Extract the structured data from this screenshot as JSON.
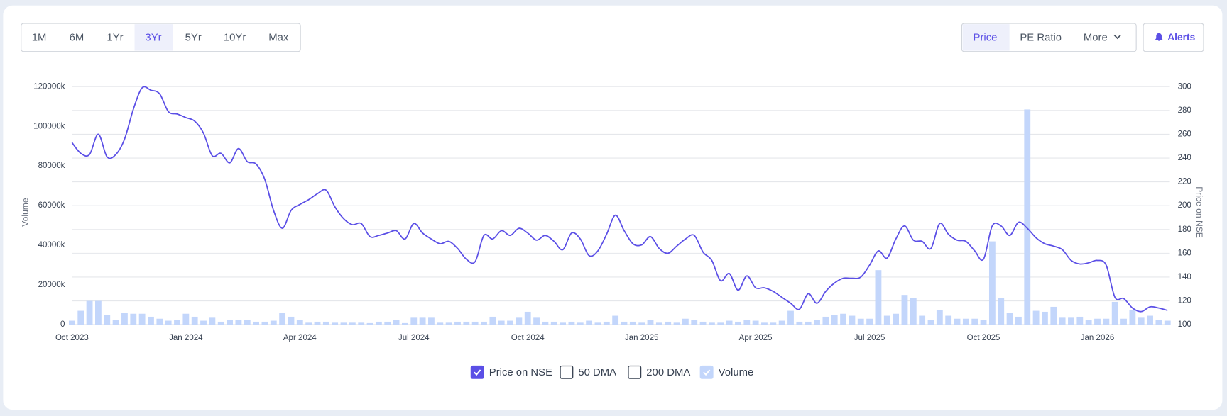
{
  "range_buttons": [
    "1M",
    "6M",
    "1Yr",
    "3Yr",
    "5Yr",
    "10Yr",
    "Max"
  ],
  "tabs": [
    "Price",
    "PE Ratio",
    "More"
  ],
  "alerts": "Alerts",
  "chart_data": {
    "type": "line",
    "categories": [
      "Oct 2023",
      null,
      null,
      null,
      null,
      null,
      null,
      null,
      null,
      null,
      null,
      null,
      null,
      "Jan 2024",
      null,
      null,
      null,
      null,
      null,
      null,
      null,
      null,
      null,
      null,
      null,
      null,
      "Apr 2024",
      null,
      null,
      null,
      null,
      null,
      null,
      null,
      null,
      null,
      null,
      null,
      null,
      "Jul 2024",
      null,
      null,
      null,
      null,
      null,
      null,
      null,
      null,
      null,
      null,
      null,
      null,
      "Oct 2024",
      null,
      null,
      null,
      null,
      null,
      null,
      null,
      null,
      null,
      null,
      null,
      null,
      "Jan 2025",
      null,
      null,
      null,
      null,
      null,
      null,
      null,
      null,
      null,
      null,
      null,
      null,
      "Apr 2025",
      null,
      null,
      null,
      null,
      null,
      null,
      null,
      null,
      null,
      null,
      null,
      null,
      "Jul 2025",
      null,
      null,
      null,
      null,
      null,
      null,
      null,
      null,
      null,
      null,
      null,
      null,
      "Oct 2025",
      null,
      null,
      null,
      null,
      null,
      null,
      null,
      null,
      null,
      null,
      null,
      null,
      "Jan 2026",
      null,
      null,
      null,
      null,
      null,
      null,
      null,
      null
    ],
    "series": [
      {
        "name": "Price on NSE",
        "type": "line",
        "axis": "y2",
        "color": "#5b4fe6",
        "checked": true,
        "values": [
          253,
          244,
          243,
          260,
          241,
          243,
          256,
          281,
          299,
          297,
          294,
          279,
          277,
          274,
          271,
          261,
          242,
          244,
          236,
          248,
          237,
          235,
          222,
          196,
          181,
          196,
          201,
          205,
          210,
          213,
          199,
          189,
          184,
          185,
          174,
          175,
          177,
          179,
          172,
          185,
          177,
          172,
          168,
          170,
          164,
          155,
          153,
          175,
          172,
          179,
          175,
          181,
          177,
          171,
          175,
          170,
          163,
          177,
          172,
          158,
          162,
          176,
          192,
          179,
          168,
          167,
          174,
          164,
          160,
          166,
          172,
          175,
          161,
          154,
          137,
          143,
          129,
          141,
          131,
          131,
          128,
          123,
          118,
          113,
          126,
          118,
          128,
          135,
          139,
          139,
          140,
          150,
          162,
          156,
          172,
          183,
          171,
          170,
          164,
          185,
          176,
          171,
          170,
          162,
          155,
          183,
          183,
          175,
          186,
          181,
          173,
          168,
          166,
          163,
          154,
          151,
          152,
          154,
          150,
          123,
          122,
          114,
          111,
          115,
          114,
          112
        ]
      },
      {
        "name": "Volume",
        "type": "bar",
        "color": "#c3d6fb",
        "checked": true,
        "values": [
          2000,
          7000,
          12000,
          12000,
          5000,
          2500,
          6000,
          5500,
          5500,
          4000,
          3000,
          2000,
          2500,
          5500,
          4000,
          2000,
          3500,
          1500,
          2500,
          2500,
          2500,
          1500,
          1500,
          2000,
          6000,
          4000,
          2500,
          1000,
          1500,
          1500,
          1000,
          1000,
          1000,
          1000,
          800,
          1500,
          1500,
          2500,
          800,
          3500,
          3500,
          3500,
          1000,
          1000,
          1500,
          1500,
          1500,
          1500,
          4000,
          2000,
          2000,
          3500,
          6500,
          3500,
          1500,
          1500,
          1000,
          1500,
          1000,
          2000,
          1000,
          1500,
          4500,
          1500,
          1500,
          1000,
          2500,
          1000,
          1500,
          1000,
          3000,
          2500,
          1500,
          1000,
          1000,
          2000,
          1500,
          2500,
          2000,
          1000,
          1000,
          2000,
          7000,
          1500,
          1500,
          2500,
          4000,
          5000,
          5500,
          4500,
          3000,
          3000,
          27500,
          4500,
          5500,
          15000,
          13500,
          4500,
          2500,
          7500,
          4500,
          3000,
          3000,
          3000,
          2500,
          42000,
          13500,
          6000,
          4000,
          108500,
          7000,
          6500,
          9000,
          3500,
          3500,
          4000,
          2500,
          3000,
          3000,
          11500,
          3000,
          7500,
          3500,
          4500,
          2500,
          2000
        ]
      }
    ],
    "unchecked_legend": [
      "50 DMA",
      "200 DMA"
    ],
    "ylabel": "Volume",
    "y2label": "Price on NSE",
    "ylim": [
      0,
      120000
    ],
    "yticks": [
      0,
      {
        "value": 20000,
        "label": "20000k"
      },
      {
        "value": 40000,
        "label": "40000k"
      },
      {
        "value": 60000,
        "label": "60000k"
      },
      {
        "value": 80000,
        "label": "80000k"
      },
      {
        "value": 100000,
        "label": "100000k"
      },
      {
        "value": 120000,
        "label": "120000k"
      }
    ],
    "y2lim": [
      100,
      300
    ],
    "y2ticks": [
      100,
      120,
      140,
      160,
      180,
      200,
      220,
      240,
      260,
      280,
      300
    ],
    "grid": true
  }
}
